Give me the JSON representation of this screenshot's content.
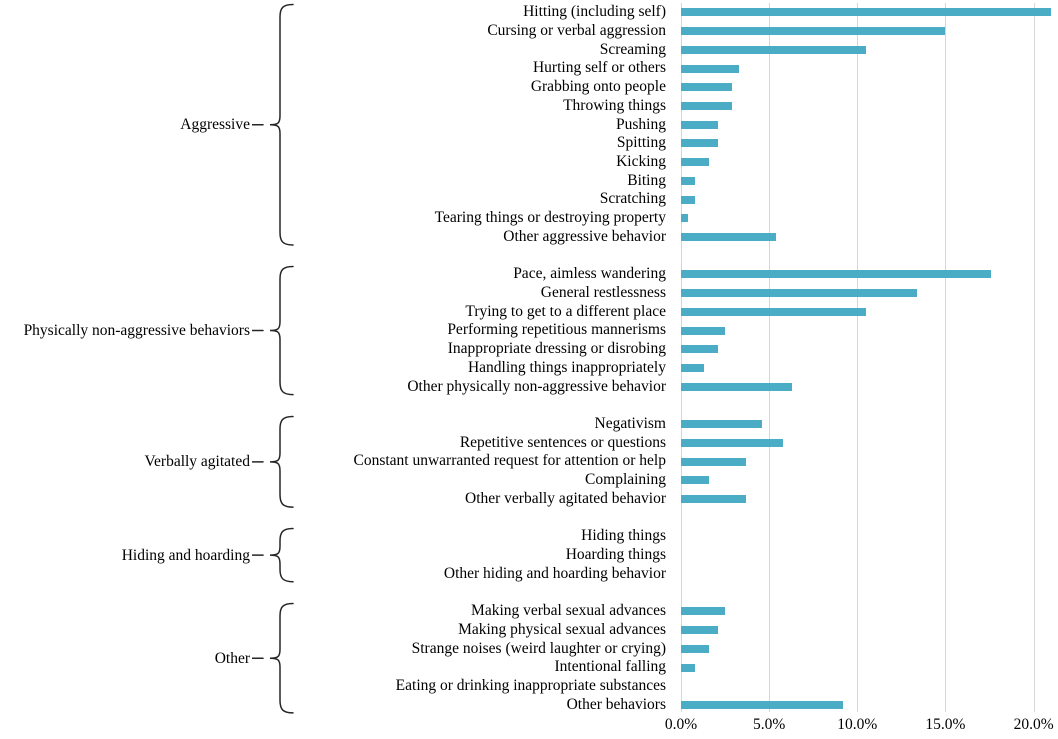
{
  "chart_data": {
    "type": "bar",
    "orientation": "horizontal",
    "unit": "percent",
    "grid": "vertical-gridlines-on",
    "legend": "none",
    "bar_color": "#4BACC6",
    "gridline_color": "#d6d6d6",
    "xlim": [
      0,
      21.4
    ],
    "x_tick_values": [
      0,
      5,
      10,
      15,
      20
    ],
    "x_tick_labels": [
      "0.0%",
      "5.0%",
      "10.0%",
      "15.0%",
      "20.0%"
    ],
    "groups": [
      {
        "label": "Aggressive",
        "items": [
          {
            "label": "Hitting (including self)",
            "value": 21.0
          },
          {
            "label": "Cursing or verbal aggression",
            "value": 15.0
          },
          {
            "label": "Screaming",
            "value": 10.5
          },
          {
            "label": "Hurting self or others",
            "value": 3.3
          },
          {
            "label": "Grabbing onto people",
            "value": 2.9
          },
          {
            "label": "Throwing things",
            "value": 2.9
          },
          {
            "label": "Pushing",
            "value": 2.1
          },
          {
            "label": "Spitting",
            "value": 2.1
          },
          {
            "label": "Kicking",
            "value": 1.6
          },
          {
            "label": "Biting",
            "value": 0.8
          },
          {
            "label": "Scratching",
            "value": 0.8
          },
          {
            "label": "Tearing things or destroying property",
            "value": 0.4
          },
          {
            "label": "Other aggressive behavior",
            "value": 5.4
          }
        ]
      },
      {
        "label": "Physically non-aggressive behaviors",
        "items": [
          {
            "label": "Pace, aimless wandering",
            "value": 17.6
          },
          {
            "label": "General restlessness",
            "value": 13.4
          },
          {
            "label": "Trying to get to a different place",
            "value": 10.5
          },
          {
            "label": "Performing repetitious mannerisms",
            "value": 2.5
          },
          {
            "label": "Inappropriate dressing or disrobing",
            "value": 2.1
          },
          {
            "label": "Handling things inappropriately",
            "value": 1.3
          },
          {
            "label": "Other physically non-aggressive behavior",
            "value": 6.3
          }
        ]
      },
      {
        "label": "Verbally agitated",
        "items": [
          {
            "label": "Negativism",
            "value": 4.6
          },
          {
            "label": "Repetitive sentences or questions",
            "value": 5.8
          },
          {
            "label": "Constant unwarranted request for attention or help",
            "value": 3.7
          },
          {
            "label": "Complaining",
            "value": 1.6
          },
          {
            "label": "Other verbally agitated behavior",
            "value": 3.7
          }
        ]
      },
      {
        "label": "Hiding and hoarding",
        "items": [
          {
            "label": "Hiding things",
            "value": 0
          },
          {
            "label": "Hoarding things",
            "value": 0
          },
          {
            "label": "Other hiding and hoarding behavior",
            "value": 0
          }
        ]
      },
      {
        "label": "Other",
        "items": [
          {
            "label": "Making verbal sexual advances",
            "value": 2.5
          },
          {
            "label": "Making physical sexual advances",
            "value": 2.1
          },
          {
            "label": "Strange noises (weird laughter or crying)",
            "value": 1.6
          },
          {
            "label": "Intentional falling",
            "value": 0.8
          },
          {
            "label": "Eating or drinking inappropriate substances",
            "value": 0
          },
          {
            "label": "Other behaviors",
            "value": 9.2
          }
        ]
      }
    ]
  }
}
